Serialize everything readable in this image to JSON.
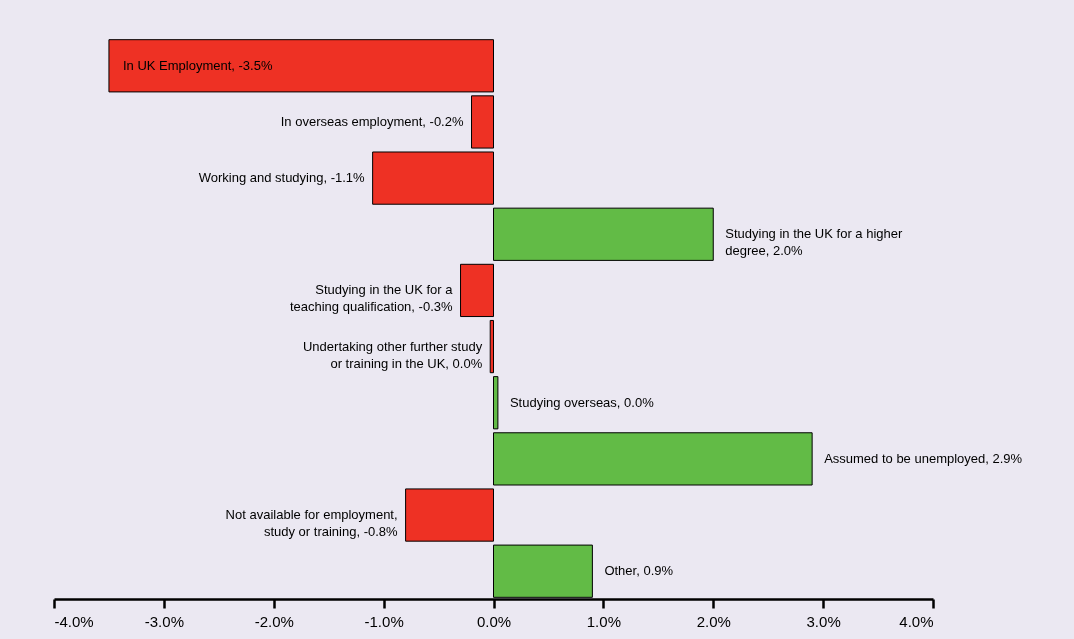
{
  "chart_data": {
    "type": "bar",
    "orientation": "horizontal",
    "categories": [
      "In UK Employment, -3.5%",
      "In overseas employment, -0.2%",
      "Working and studying, -1.1%",
      "Studying in the UK for a higher degree, 2.0%",
      "Studying in the UK for a teaching qualification, -0.3%",
      "Undertaking other further study or training in the UK, 0.0%",
      "Studying overseas, 0.0%",
      "Assumed to be unemployed, 2.9%",
      "Not available for employment, study or training, -0.8%",
      "Other, 0.9%"
    ],
    "values": [
      -3.5,
      -0.2,
      -1.1,
      2.0,
      -0.3,
      -0.03,
      0.04,
      2.9,
      -0.8,
      0.9
    ],
    "colors": [
      "#ee3124",
      "#ee3124",
      "#ee3124",
      "#62bb46",
      "#ee3124",
      "#ee3124",
      "#62bb46",
      "#62bb46",
      "#ee3124",
      "#62bb46"
    ],
    "xlim": [
      -4,
      4
    ],
    "xticks": [
      {
        "value": -4,
        "label": "-4.0%"
      },
      {
        "value": -3,
        "label": "-3.0%"
      },
      {
        "value": -2,
        "label": "-2.0%"
      },
      {
        "value": -1,
        "label": "-1.0%"
      },
      {
        "value": 0,
        "label": "0.0%"
      },
      {
        "value": 1,
        "label": "1.0%"
      },
      {
        "value": 2,
        "label": "2.0%"
      },
      {
        "value": 3,
        "label": "3.0%"
      },
      {
        "value": 4,
        "label": "4.0%"
      }
    ],
    "grid": false
  }
}
